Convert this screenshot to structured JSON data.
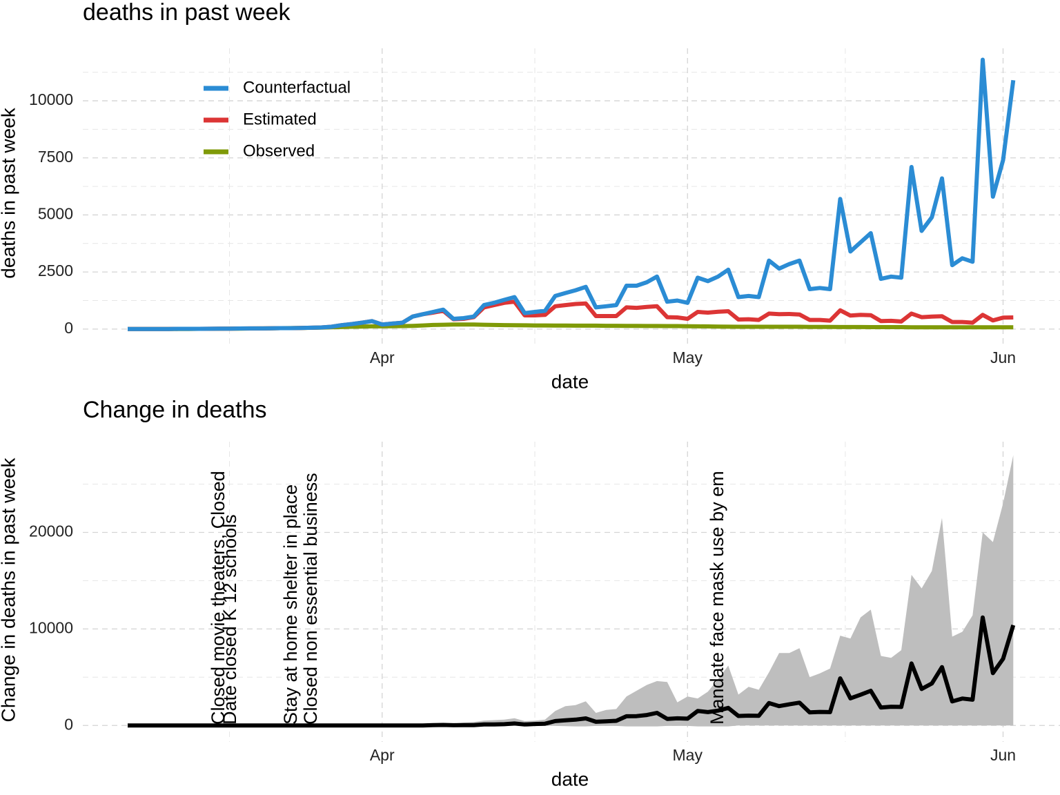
{
  "chart_data": [
    {
      "type": "line",
      "title": "deaths in past week",
      "xlabel": "date",
      "ylabel": "deaths in past week",
      "categories": [
        null,
        null,
        null,
        null,
        null,
        null,
        null,
        null,
        null,
        null,
        null,
        null,
        null,
        null,
        null,
        null,
        null,
        null,
        null,
        null,
        null,
        null,
        null,
        null,
        null,
        "Apr",
        null,
        null,
        null,
        null,
        null,
        null,
        null,
        null,
        null,
        null,
        null,
        null,
        null,
        null,
        null,
        null,
        null,
        null,
        null,
        null,
        null,
        null,
        null,
        null,
        null,
        null,
        null,
        null,
        null,
        "May",
        null,
        null,
        null,
        null,
        null,
        null,
        null,
        null,
        null,
        null,
        null,
        null,
        null,
        null,
        null,
        null,
        null,
        null,
        null,
        null,
        null,
        null,
        null,
        null,
        null,
        null,
        null,
        null,
        null,
        null,
        "Jun",
        null
      ],
      "series": [
        {
          "name": "Counterfactual",
          "color": "#2b8cd4",
          "values": [
            0,
            0,
            0,
            5,
            5,
            10,
            10,
            10,
            15,
            20,
            20,
            25,
            30,
            30,
            35,
            40,
            40,
            50,
            60,
            70,
            100,
            170,
            220,
            280,
            350,
            200,
            240,
            280,
            550,
            650,
            750,
            850,
            450,
            480,
            550,
            1050,
            1150,
            1280,
            1400,
            700,
            750,
            800,
            1450,
            1580,
            1700,
            1850,
            950,
            1000,
            1050,
            1900,
            1900,
            2050,
            2300,
            1200,
            1250,
            1150,
            2250,
            2100,
            2300,
            2600,
            1400,
            1450,
            1400,
            3000,
            2650,
            2850,
            3000,
            1750,
            1800,
            1750,
            5700,
            3400,
            3800,
            4200,
            2200,
            2300,
            2250,
            7100,
            4300,
            4900,
            6600,
            2800,
            3100,
            2950,
            11800,
            5800,
            7400,
            10900
          ]
        },
        {
          "name": "Estimated",
          "color": "#dc3535",
          "values": [
            0,
            0,
            0,
            5,
            5,
            10,
            10,
            10,
            15,
            20,
            20,
            25,
            30,
            30,
            35,
            40,
            40,
            50,
            60,
            70,
            100,
            170,
            220,
            280,
            350,
            200,
            240,
            280,
            550,
            650,
            720,
            800,
            430,
            450,
            520,
            950,
            1050,
            1150,
            1200,
            600,
            600,
            620,
            1000,
            1050,
            1100,
            1120,
            570,
            570,
            570,
            950,
            930,
            970,
            1000,
            520,
            510,
            450,
            750,
            720,
            760,
            780,
            420,
            430,
            400,
            680,
            650,
            660,
            640,
            400,
            400,
            370,
            820,
            590,
            620,
            610,
            350,
            360,
            330,
            680,
            520,
            550,
            560,
            310,
            310,
            280,
            620,
            380,
            500,
            510
          ]
        },
        {
          "name": "Observed",
          "color": "#7f9a08",
          "values": [
            0,
            0,
            0,
            0,
            5,
            5,
            5,
            10,
            10,
            15,
            20,
            20,
            25,
            30,
            35,
            40,
            45,
            50,
            55,
            65,
            80,
            90,
            100,
            110,
            120,
            120,
            125,
            130,
            140,
            160,
            180,
            190,
            200,
            200,
            200,
            190,
            180,
            175,
            170,
            165,
            160,
            160,
            155,
            155,
            150,
            150,
            150,
            145,
            145,
            140,
            140,
            135,
            135,
            130,
            130,
            125,
            120,
            115,
            110,
            105,
            100,
            100,
            100,
            100,
            100,
            100,
            100,
            95,
            95,
            95,
            90,
            90,
            90,
            85,
            85,
            85,
            85,
            80,
            80,
            80,
            80,
            80,
            80,
            80,
            80,
            80,
            80,
            80
          ]
        }
      ],
      "ylim": [
        -700,
        12300
      ],
      "yticks": [
        0,
        2500,
        5000,
        7500,
        10000
      ],
      "grid": true,
      "legend": "top-left"
    },
    {
      "type": "line",
      "title": "Change in deaths",
      "xlabel": "date",
      "ylabel": "Change in deaths in past week",
      "categories": [
        null,
        null,
        null,
        null,
        null,
        null,
        null,
        null,
        null,
        null,
        null,
        null,
        null,
        null,
        null,
        null,
        null,
        null,
        null,
        null,
        null,
        null,
        null,
        null,
        null,
        "Apr",
        null,
        null,
        null,
        null,
        null,
        null,
        null,
        null,
        null,
        null,
        null,
        null,
        null,
        null,
        null,
        null,
        null,
        null,
        null,
        null,
        null,
        null,
        null,
        null,
        null,
        null,
        null,
        null,
        null,
        "May",
        null,
        null,
        null,
        null,
        null,
        null,
        null,
        null,
        null,
        null,
        null,
        null,
        null,
        null,
        null,
        null,
        null,
        null,
        null,
        null,
        null,
        null,
        null,
        null,
        null,
        null,
        null,
        null,
        null,
        null,
        "Jun",
        null
      ],
      "values": [
        0,
        0,
        0,
        0,
        0,
        0,
        0,
        0,
        0,
        0,
        0,
        0,
        0,
        0,
        0,
        0,
        0,
        0,
        0,
        0,
        0,
        0,
        0,
        0,
        0,
        0,
        0,
        0,
        0,
        0,
        30,
        50,
        20,
        30,
        30,
        100,
        100,
        130,
        200,
        100,
        150,
        180,
        450,
        530,
        600,
        730,
        380,
        430,
        480,
        950,
        970,
        1080,
        1300,
        680,
        740,
        700,
        1500,
        1380,
        1540,
        1820,
        980,
        1020,
        1000,
        2320,
        2000,
        2190,
        2360,
        1350,
        1400,
        1380,
        4880,
        2810,
        3180,
        3590,
        1850,
        1940,
        1920,
        6420,
        3780,
        4350,
        6040,
        2490,
        2790,
        2670,
        11180,
        5420,
        6900,
        10390
      ],
      "color": "#000000",
      "band": {
        "color": "#bebebe",
        "upper": [
          0,
          0,
          0,
          0,
          0,
          0,
          0,
          0,
          0,
          0,
          0,
          0,
          0,
          0,
          0,
          0,
          0,
          0,
          0,
          0,
          10,
          20,
          30,
          40,
          50,
          40,
          50,
          60,
          100,
          150,
          200,
          250,
          200,
          300,
          350,
          500,
          550,
          600,
          750,
          450,
          500,
          600,
          1500,
          2000,
          2100,
          2500,
          1300,
          1600,
          1700,
          3000,
          3600,
          4200,
          4600,
          4500,
          2400,
          3000,
          2800,
          3500,
          4800,
          6200,
          3200,
          4000,
          3700,
          5500,
          7500,
          7500,
          8000,
          5000,
          5400,
          5900,
          9300,
          9000,
          11200,
          12000,
          7200,
          7000,
          7800,
          15600,
          14200,
          16000,
          21500,
          9200,
          9700,
          11400,
          20000,
          19000,
          23000,
          28000
        ],
        "lower": [
          0,
          0,
          0,
          0,
          0,
          0,
          0,
          0,
          0,
          0,
          0,
          0,
          0,
          0,
          0,
          0,
          0,
          0,
          0,
          0,
          0,
          0,
          0,
          0,
          0,
          0,
          0,
          0,
          0,
          0,
          0,
          0,
          0,
          0,
          0,
          0,
          0,
          0,
          0,
          0,
          0,
          0,
          -50,
          -80,
          -100,
          -100,
          -50,
          -50,
          -50,
          -100,
          -100,
          -100,
          -100,
          -50,
          -50,
          -50,
          -100,
          -100,
          -100,
          -100,
          0,
          0,
          0,
          0,
          0,
          0,
          0,
          0,
          0,
          0,
          0,
          0,
          0,
          0,
          0,
          0,
          0,
          0,
          0,
          0,
          0,
          0,
          0,
          0,
          0,
          0,
          0,
          0
        ]
      },
      "annotations": [
        "Closed movie theaters, Closed",
        "Date closed K 12 schools",
        "Stay at home  shelter in place",
        "Closed non essential business",
        "Mandate face mask use by em"
      ],
      "ylim": [
        -1700,
        29400
      ],
      "yticks": [
        0,
        10000,
        20000
      ],
      "grid": true
    }
  ]
}
